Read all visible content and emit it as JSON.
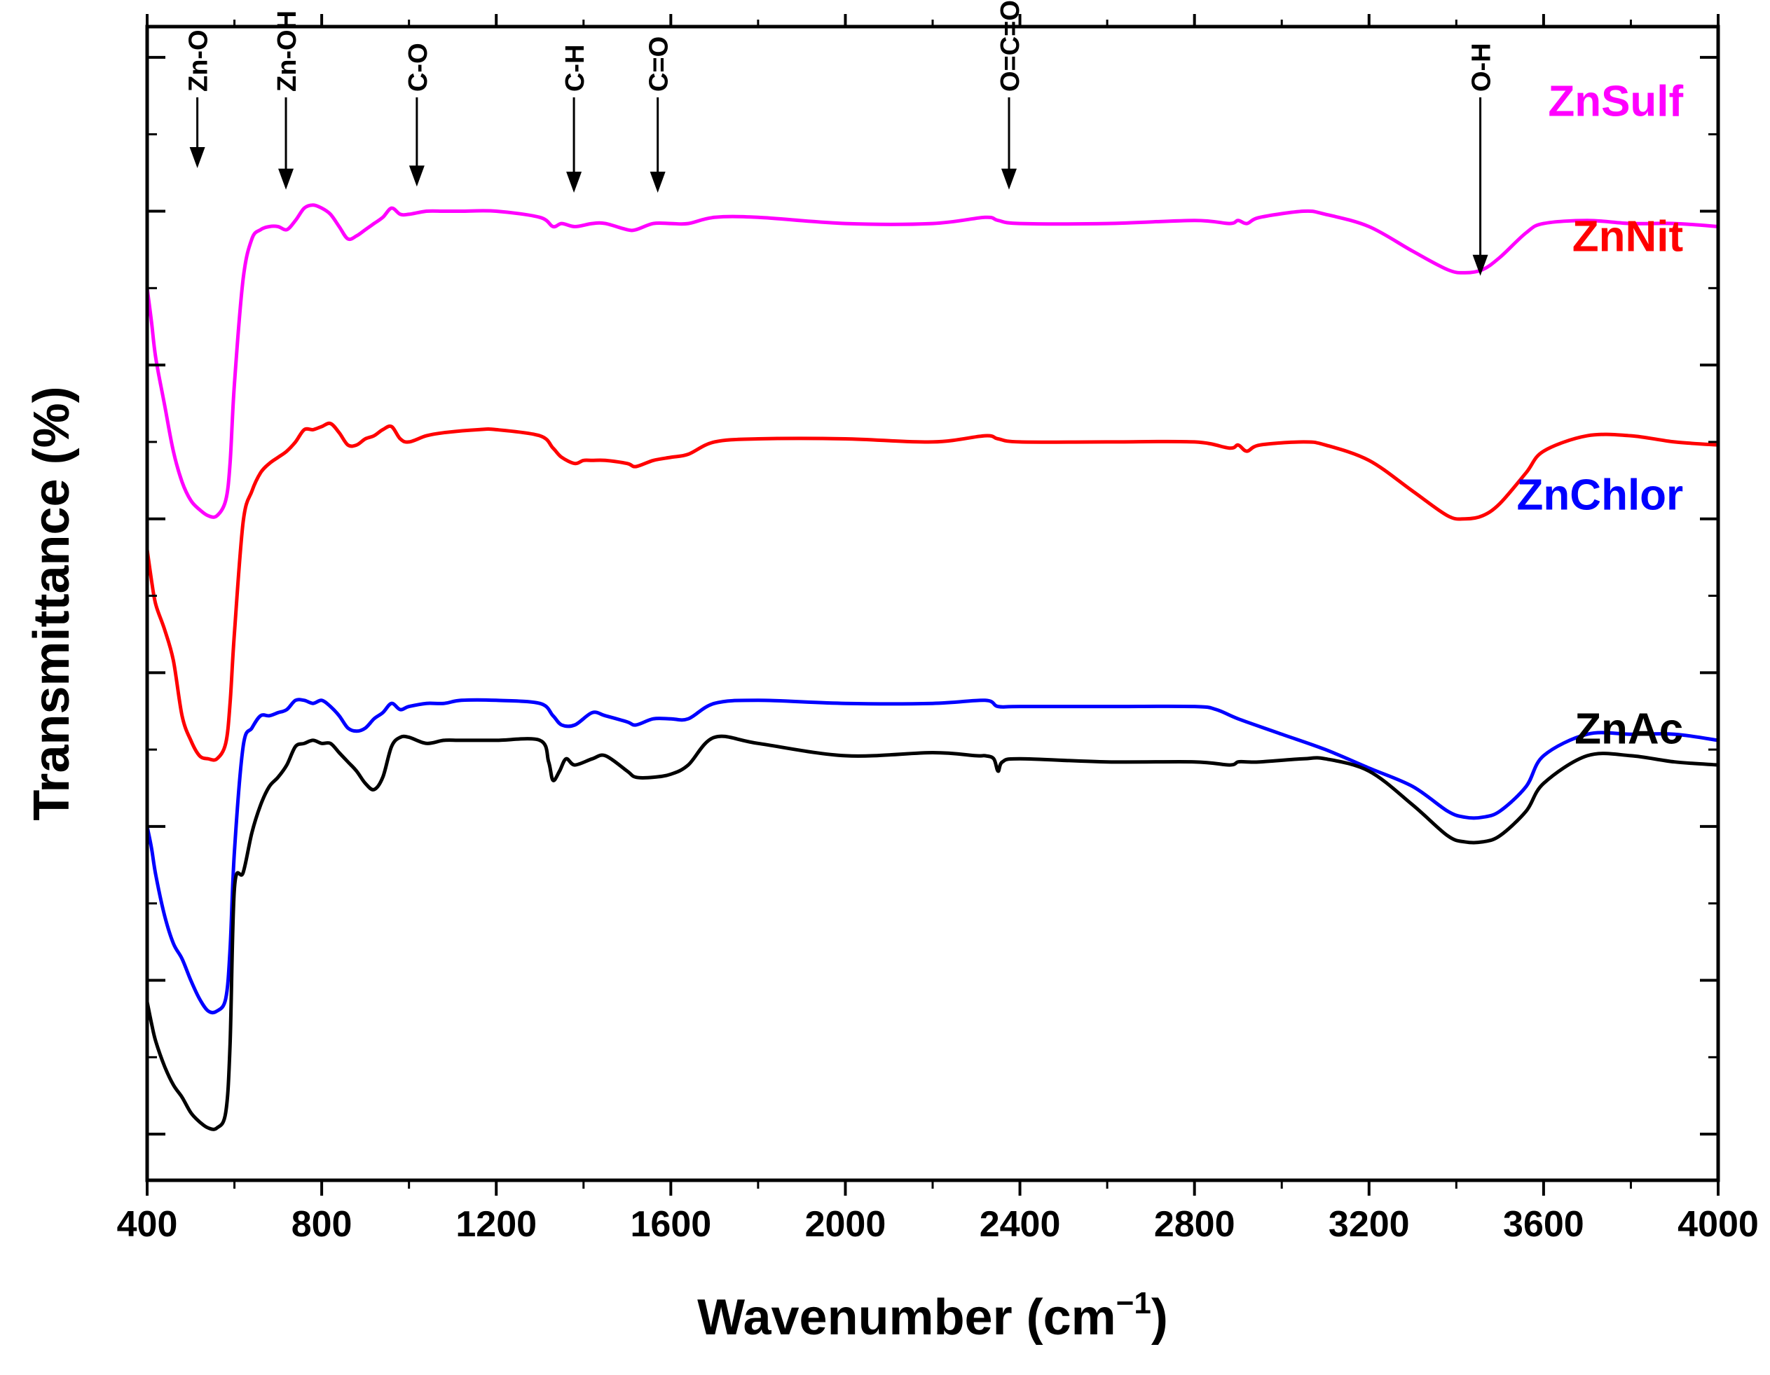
{
  "chart_data": {
    "type": "line",
    "title": "",
    "xlabel": "Wavenumber (cm",
    "xlabel_sup": "−1",
    "xlabel_close": ")",
    "ylabel": "Transmittance (%)",
    "xlim": [
      400,
      4000
    ],
    "ylim": [
      -0.15,
      3.6
    ],
    "xticks": [
      400,
      800,
      1200,
      1600,
      2000,
      2400,
      2800,
      3200,
      3600,
      4000
    ],
    "yticks_major": [
      0,
      0.5,
      1.0,
      1.5,
      2.0,
      2.5,
      3.0,
      3.5
    ],
    "yticks_minor": [
      0.25,
      0.75,
      1.25,
      1.75,
      2.25,
      2.75,
      3.25
    ],
    "yticklabels_shown": false,
    "grid": false,
    "legend": "inline labels, right",
    "series": [
      {
        "name": "ZnSulf",
        "color": "#ff00ff",
        "label_at": [
          3920,
          3.31
        ],
        "x": [
          400,
          410,
          420,
          440,
          460,
          480,
          500,
          520,
          540,
          560,
          580,
          590,
          600,
          620,
          640,
          660,
          680,
          700,
          720,
          740,
          760,
          780,
          800,
          820,
          840,
          860,
          880,
          900,
          920,
          940,
          960,
          980,
          1000,
          1040,
          1080,
          1120,
          1200,
          1300,
          1330,
          1350,
          1380,
          1420,
          1450,
          1500,
          1520,
          1560,
          1600,
          1640,
          1700,
          1800,
          2000,
          2200,
          2320,
          2350,
          2400,
          2600,
          2800,
          2880,
          2900,
          2920,
          2950,
          3050,
          3100,
          3200,
          3300,
          3380,
          3420,
          3460,
          3500,
          3560,
          3600,
          3700,
          3800,
          3900,
          4000
        ],
        "y": [
          2.75,
          2.64,
          2.52,
          2.37,
          2.22,
          2.12,
          2.06,
          2.03,
          2.01,
          2.01,
          2.06,
          2.18,
          2.44,
          2.78,
          2.91,
          2.94,
          2.95,
          2.95,
          2.94,
          2.97,
          3.01,
          3.02,
          3.01,
          2.99,
          2.95,
          2.91,
          2.92,
          2.94,
          2.96,
          2.98,
          3.01,
          2.99,
          2.99,
          3.0,
          3.0,
          3.0,
          3.0,
          2.98,
          2.95,
          2.96,
          2.95,
          2.96,
          2.96,
          2.94,
          2.94,
          2.96,
          2.96,
          2.96,
          2.98,
          2.98,
          2.96,
          2.96,
          2.98,
          2.97,
          2.96,
          2.96,
          2.97,
          2.96,
          2.97,
          2.96,
          2.98,
          3.0,
          2.99,
          2.95,
          2.87,
          2.81,
          2.8,
          2.81,
          2.85,
          2.93,
          2.96,
          2.97,
          2.96,
          2.96,
          2.95
        ]
      },
      {
        "name": "ZnNit",
        "color": "#ff0000",
        "label_at": [
          3920,
          2.87
        ],
        "x": [
          400,
          410,
          420,
          440,
          460,
          480,
          500,
          520,
          540,
          560,
          580,
          590,
          600,
          620,
          640,
          660,
          680,
          700,
          720,
          740,
          760,
          780,
          800,
          820,
          840,
          860,
          880,
          900,
          920,
          940,
          960,
          980,
          1000,
          1040,
          1080,
          1160,
          1200,
          1300,
          1330,
          1350,
          1380,
          1400,
          1420,
          1450,
          1500,
          1520,
          1560,
          1600,
          1640,
          1700,
          1800,
          2000,
          2200,
          2320,
          2350,
          2400,
          2600,
          2800,
          2880,
          2900,
          2920,
          2950,
          3050,
          3100,
          3200,
          3300,
          3380,
          3420,
          3460,
          3500,
          3560,
          3600,
          3700,
          3800,
          3900,
          4000
        ],
        "y": [
          1.9,
          1.8,
          1.72,
          1.64,
          1.54,
          1.36,
          1.28,
          1.23,
          1.22,
          1.22,
          1.27,
          1.4,
          1.63,
          1.99,
          2.09,
          2.15,
          2.18,
          2.2,
          2.22,
          2.25,
          2.29,
          2.29,
          2.3,
          2.31,
          2.28,
          2.24,
          2.24,
          2.26,
          2.27,
          2.29,
          2.3,
          2.26,
          2.25,
          2.27,
          2.28,
          2.29,
          2.29,
          2.27,
          2.23,
          2.2,
          2.18,
          2.19,
          2.19,
          2.19,
          2.18,
          2.17,
          2.19,
          2.2,
          2.21,
          2.25,
          2.26,
          2.26,
          2.25,
          2.27,
          2.26,
          2.25,
          2.25,
          2.25,
          2.23,
          2.24,
          2.22,
          2.24,
          2.25,
          2.24,
          2.19,
          2.09,
          2.01,
          2.0,
          2.01,
          2.05,
          2.15,
          2.22,
          2.27,
          2.27,
          2.25,
          2.24
        ]
      },
      {
        "name": "ZnChlor",
        "color": "#0000ff",
        "label_at": [
          3920,
          2.03
        ],
        "x": [
          400,
          410,
          420,
          440,
          460,
          480,
          500,
          520,
          540,
          560,
          580,
          590,
          600,
          620,
          640,
          660,
          680,
          700,
          720,
          740,
          760,
          780,
          800,
          820,
          840,
          860,
          880,
          900,
          920,
          940,
          960,
          980,
          1000,
          1040,
          1080,
          1120,
          1200,
          1300,
          1330,
          1350,
          1380,
          1420,
          1450,
          1500,
          1520,
          1560,
          1600,
          1640,
          1700,
          1800,
          2000,
          2200,
          2320,
          2350,
          2400,
          2600,
          2800,
          2850,
          2900,
          3000,
          3100,
          3200,
          3300,
          3380,
          3420,
          3460,
          3500,
          3560,
          3600,
          3700,
          3800,
          3900,
          4000
        ],
        "y": [
          1.0,
          0.93,
          0.84,
          0.71,
          0.62,
          0.57,
          0.5,
          0.44,
          0.4,
          0.4,
          0.44,
          0.6,
          0.92,
          1.26,
          1.32,
          1.36,
          1.36,
          1.37,
          1.38,
          1.41,
          1.41,
          1.4,
          1.41,
          1.39,
          1.36,
          1.32,
          1.31,
          1.32,
          1.35,
          1.37,
          1.4,
          1.38,
          1.39,
          1.4,
          1.4,
          1.41,
          1.41,
          1.4,
          1.36,
          1.33,
          1.33,
          1.37,
          1.36,
          1.34,
          1.33,
          1.35,
          1.35,
          1.35,
          1.4,
          1.41,
          1.4,
          1.4,
          1.41,
          1.39,
          1.39,
          1.39,
          1.39,
          1.38,
          1.35,
          1.3,
          1.25,
          1.19,
          1.13,
          1.05,
          1.03,
          1.03,
          1.05,
          1.13,
          1.23,
          1.3,
          1.3,
          1.3,
          1.28
        ]
      },
      {
        "name": "ZnAc",
        "color": "#000000",
        "label_at": [
          3920,
          1.27
        ],
        "x": [
          400,
          410,
          420,
          440,
          460,
          480,
          500,
          520,
          540,
          560,
          580,
          590,
          600,
          620,
          640,
          660,
          680,
          700,
          720,
          740,
          760,
          780,
          800,
          820,
          840,
          860,
          880,
          900,
          920,
          940,
          960,
          980,
          1000,
          1040,
          1080,
          1120,
          1200,
          1300,
          1320,
          1330,
          1345,
          1360,
          1380,
          1420,
          1450,
          1500,
          1520,
          1560,
          1600,
          1640,
          1700,
          1800,
          2000,
          2200,
          2300,
          2320,
          2340,
          2350,
          2360,
          2400,
          2600,
          2800,
          2880,
          2900,
          2920,
          2950,
          3050,
          3100,
          3200,
          3300,
          3380,
          3420,
          3460,
          3500,
          3560,
          3600,
          3700,
          3800,
          3900,
          4000
        ],
        "y": [
          0.43,
          0.36,
          0.3,
          0.22,
          0.16,
          0.12,
          0.07,
          0.04,
          0.02,
          0.02,
          0.07,
          0.29,
          0.8,
          0.85,
          0.98,
          1.07,
          1.13,
          1.16,
          1.2,
          1.26,
          1.27,
          1.28,
          1.27,
          1.27,
          1.24,
          1.21,
          1.18,
          1.14,
          1.12,
          1.16,
          1.26,
          1.29,
          1.29,
          1.27,
          1.28,
          1.28,
          1.28,
          1.28,
          1.21,
          1.15,
          1.18,
          1.22,
          1.2,
          1.22,
          1.23,
          1.18,
          1.16,
          1.16,
          1.17,
          1.2,
          1.29,
          1.27,
          1.23,
          1.24,
          1.23,
          1.23,
          1.22,
          1.18,
          1.21,
          1.22,
          1.21,
          1.21,
          1.2,
          1.21,
          1.21,
          1.21,
          1.22,
          1.22,
          1.18,
          1.07,
          0.97,
          0.95,
          0.95,
          0.97,
          1.05,
          1.14,
          1.23,
          1.23,
          1.21,
          1.2
        ]
      }
    ],
    "annotations": [
      {
        "label": "Zn-O",
        "x": 515,
        "tip_y": 3.14,
        "tail_y": 3.37
      },
      {
        "label": "Zn-OH",
        "x": 718,
        "tip_y": 3.07,
        "tail_y": 3.37
      },
      {
        "label": "C-O",
        "x": 1018,
        "tip_y": 3.08,
        "tail_y": 3.37
      },
      {
        "label": "C-H",
        "x": 1378,
        "tip_y": 3.06,
        "tail_y": 3.37
      },
      {
        "label": "C=O",
        "x": 1570,
        "tip_y": 3.06,
        "tail_y": 3.37
      },
      {
        "label": "O=C=O",
        "x": 2375,
        "tip_y": 3.07,
        "tail_y": 3.37
      },
      {
        "label": "O-H",
        "x": 3455,
        "tip_y": 2.79,
        "tail_y": 3.37
      }
    ]
  }
}
